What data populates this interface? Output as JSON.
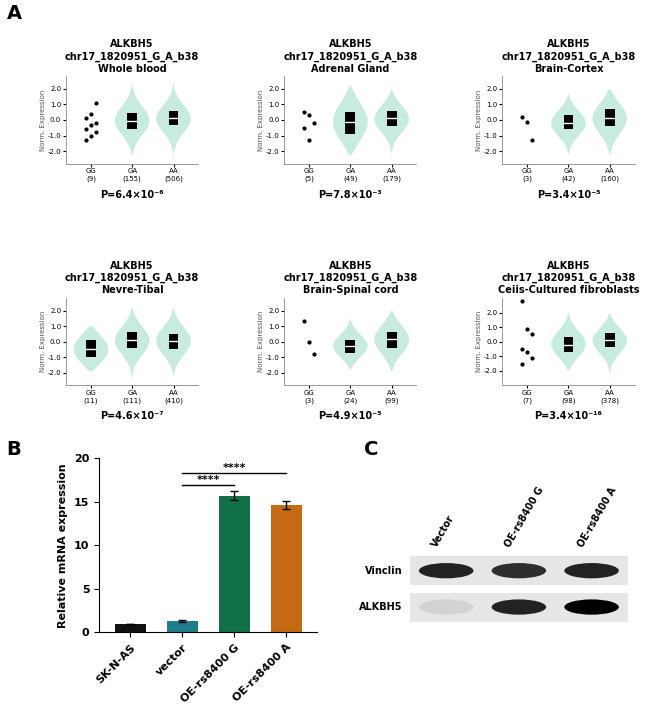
{
  "chart_data": [
    {
      "type": "violin",
      "panel": "A",
      "title": "ALKBH5",
      "subtitle": "chr17_1820951_G_A_b38",
      "tissue": "Whole blood",
      "annotation": "P=6.4×10⁻⁶",
      "ylabel": "Norm. Expression",
      "color": "#c8ebe0",
      "ylim": [
        -2.8,
        2.8
      ],
      "yticks": [
        {
          "value": -2,
          "label": "-2.0"
        },
        {
          "value": -1,
          "label": "-1.0"
        },
        {
          "value": 0,
          "label": "0.0"
        },
        {
          "value": 1,
          "label": "1.0"
        },
        {
          "value": 2,
          "label": "2.0"
        }
      ],
      "groups": [
        {
          "name": "GG",
          "count_label": "(9)",
          "points": [
            -1.3,
            -1.0,
            -0.8,
            -0.6,
            -0.3,
            -0.2,
            0.1,
            0.4,
            1.1
          ]
        },
        {
          "name": "GA",
          "count_label": "(155)",
          "median": -0.05,
          "q1": -0.55,
          "q3": 0.45,
          "min": -2.4,
          "max": 2.4
        },
        {
          "name": "AA",
          "count_label": "(506)",
          "median": 0.1,
          "q1": -0.35,
          "q3": 0.6,
          "min": -2.6,
          "max": 2.4
        }
      ]
    },
    {
      "type": "violin",
      "title": "ALKBH5",
      "subtitle": "chr17_1820951_G_A_b38",
      "tissue": "Adrenal Gland",
      "annotation": "P=7.8×10⁻³",
      "ylabel": "Norm. Expression",
      "color": "#c8ebe0",
      "ylim": [
        -2.8,
        2.8
      ],
      "yticks": [
        {
          "value": -2,
          "label": "-2.0"
        },
        {
          "value": -1,
          "label": "-1.0"
        },
        {
          "value": 0,
          "label": "0.0"
        },
        {
          "value": 1,
          "label": "1.0"
        },
        {
          "value": 2,
          "label": "2.0"
        }
      ],
      "groups": [
        {
          "name": "GG",
          "count_label": "(5)",
          "points": [
            0.5,
            0.3,
            -0.2,
            -0.5,
            -1.3
          ]
        },
        {
          "name": "GA",
          "count_label": "(49)",
          "median": -0.15,
          "q1": -0.9,
          "q3": 0.5,
          "min": -2.3,
          "max": 2.2
        },
        {
          "name": "AA",
          "count_label": "(179)",
          "median": 0.1,
          "q1": -0.4,
          "q3": 0.55,
          "min": -2.2,
          "max": 2.0
        }
      ]
    },
    {
      "type": "violin",
      "title": "ALKBH5",
      "subtitle": "chr17_1820951_G_A_b38",
      "tissue": "Brain-Cortex",
      "annotation": "P=3.4×10⁻⁵",
      "ylabel": "Norm. Expression",
      "color": "#c8ebe0",
      "ylim": [
        -2.8,
        2.8
      ],
      "yticks": [
        {
          "value": -2,
          "label": "-2.0"
        },
        {
          "value": -1,
          "label": "-1.0"
        },
        {
          "value": 0,
          "label": "0.0"
        },
        {
          "value": 1,
          "label": "1.0"
        },
        {
          "value": 2,
          "label": "2.0"
        }
      ],
      "groups": [
        {
          "name": "GG",
          "count_label": "(3)",
          "points": [
            0.2,
            -0.1,
            -1.3
          ]
        },
        {
          "name": "GA",
          "count_label": "(42)",
          "median": -0.2,
          "q1": -0.6,
          "q3": 0.3,
          "min": -2.2,
          "max": 1.7
        },
        {
          "name": "AA",
          "count_label": "(160)",
          "median": 0.15,
          "q1": -0.4,
          "q3": 0.7,
          "min": -2.3,
          "max": 2.0
        }
      ]
    },
    {
      "type": "violin",
      "title": "ALKBH5",
      "subtitle": "chr17_1820951_G_A_b38",
      "tissue": "Nevre-Tibal",
      "annotation": "P=4.6×10⁻⁷",
      "ylabel": "Norm. Expression",
      "color": "#c8ebe0",
      "ylim": [
        -2.8,
        2.8
      ],
      "yticks": [
        {
          "value": -2,
          "label": "-2.0"
        },
        {
          "value": -1,
          "label": "-1.0"
        },
        {
          "value": 0,
          "label": "0.0"
        },
        {
          "value": 1,
          "label": "1.0"
        },
        {
          "value": 2,
          "label": "2.0"
        }
      ],
      "groups": [
        {
          "name": "GG",
          "count_label": "(11)",
          "median": -0.5,
          "q1": -1.0,
          "q3": 0.1,
          "min": -1.9,
          "max": 1.0
        },
        {
          "name": "GA",
          "count_label": "(111)",
          "median": 0.1,
          "q1": -0.4,
          "q3": 0.6,
          "min": -2.4,
          "max": 2.2
        },
        {
          "name": "AA",
          "count_label": "(410)",
          "median": 0.05,
          "q1": -0.5,
          "q3": 0.5,
          "min": -2.2,
          "max": 2.2
        }
      ]
    },
    {
      "type": "violin",
      "title": "ALKBH5",
      "subtitle": "chr17_1820951_G_A_b38",
      "tissue": "Brain-Spinal cord",
      "annotation": "P=4.9×10⁻⁵",
      "ylabel": "Norm. Expression",
      "color": "#c8ebe0",
      "ylim": [
        -2.8,
        2.8
      ],
      "yticks": [
        {
          "value": -2,
          "label": "-2.0"
        },
        {
          "value": -1,
          "label": "-1.0"
        },
        {
          "value": 0,
          "label": "0.0"
        },
        {
          "value": 1,
          "label": "1.0"
        },
        {
          "value": 2,
          "label": "2.0"
        }
      ],
      "groups": [
        {
          "name": "GG",
          "count_label": "(3)",
          "points": [
            1.3,
            0.0,
            -0.8
          ]
        },
        {
          "name": "GA",
          "count_label": "(24)",
          "median": -0.3,
          "q1": -0.7,
          "q3": 0.1,
          "min": -1.8,
          "max": 1.5
        },
        {
          "name": "AA",
          "count_label": "(99)",
          "median": 0.15,
          "q1": -0.4,
          "q3": 0.65,
          "min": -1.9,
          "max": 2.0
        }
      ]
    },
    {
      "type": "violin",
      "title": "ALKBH5",
      "subtitle": "chr17_1820951_G_A_b38",
      "tissue": "Ceiis-Cultured fibroblasts",
      "annotation": "P=3.4×10⁻¹⁶",
      "ylabel": "Norm. Expression",
      "color": "#c8ebe0",
      "ylim": [
        -3.0,
        3.0
      ],
      "yticks": [
        {
          "value": -2,
          "label": "-2.0"
        },
        {
          "value": -1,
          "label": "-1.0"
        },
        {
          "value": 0,
          "label": "0.0"
        },
        {
          "value": 1,
          "label": "1.0"
        },
        {
          "value": 2,
          "label": "2.0"
        }
      ],
      "groups": [
        {
          "name": "GG",
          "count_label": "(7)",
          "points": [
            2.8,
            0.9,
            0.5,
            -0.5,
            -0.7,
            -1.1,
            -1.5
          ]
        },
        {
          "name": "GA",
          "count_label": "(98)",
          "median": -0.2,
          "q1": -0.7,
          "q3": 0.3,
          "min": -2.0,
          "max": 2.0
        },
        {
          "name": "AA",
          "count_label": "(378)",
          "median": 0.1,
          "q1": -0.35,
          "q3": 0.6,
          "min": -2.2,
          "max": 2.0
        }
      ]
    },
    {
      "type": "bar",
      "panel": "B",
      "ylabel": "Relative mRNA expression",
      "categories": [
        "SK-N-AS",
        "vector",
        "OE-rs8400 G",
        "OE-rs8400 A"
      ],
      "values": [
        1.0,
        1.3,
        15.7,
        14.6
      ],
      "errors": [
        0.0,
        0.08,
        0.55,
        0.45
      ],
      "colors": [
        "#111111",
        "#1f7f8f",
        "#127048",
        "#c46a12"
      ],
      "ylim": [
        0,
        20
      ],
      "yticks": [
        0,
        5,
        10,
        15,
        20
      ],
      "comparisons": [
        {
          "groups": [
            "vector",
            "OE-rs8400 G"
          ],
          "label": "****"
        },
        {
          "groups": [
            "vector",
            "OE-rs8400 A"
          ],
          "label": "****"
        }
      ]
    },
    {
      "type": "blot",
      "panel": "C",
      "lanes": [
        "Vector",
        "OE-rs8400 G",
        "OE-rs8400 A"
      ],
      "rows": [
        {
          "name": "Vinclin",
          "intensity": [
            0.85,
            0.8,
            0.85
          ]
        },
        {
          "name": "ALKBH5",
          "intensity": [
            0.08,
            0.85,
            1.0
          ]
        }
      ]
    }
  ]
}
